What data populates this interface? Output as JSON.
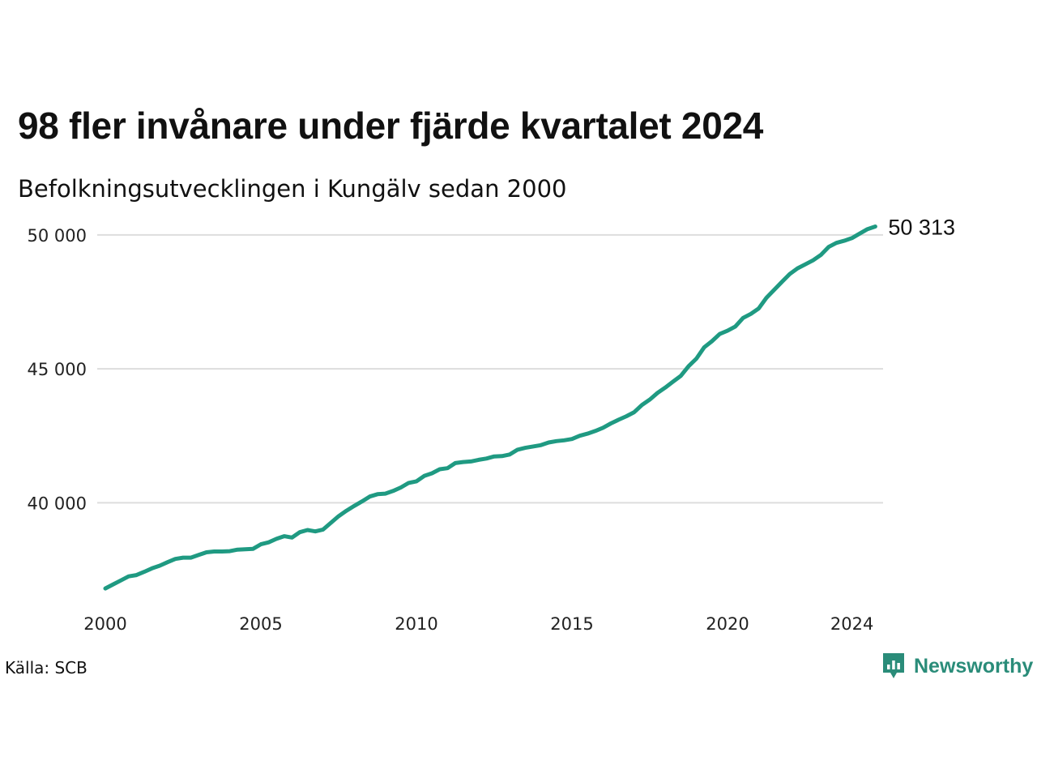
{
  "title": "98 fler invånare under fjärde kvartalet 2024",
  "subtitle": "Befolkningsutvecklingen i Kungälv sedan 2000",
  "source": "Källa: SCB",
  "brand": {
    "name": "Newsworthy",
    "color": "#2a8c79",
    "icon": "newsworthy-chart-icon"
  },
  "chart_data": {
    "type": "line",
    "title": "98 fler invånare under fjärde kvartalet 2024",
    "subtitle": "Befolkningsutvecklingen i Kungälv sedan 2000",
    "xlabel": "",
    "ylabel": "",
    "grid": true,
    "line_color": "#1f9a82",
    "grid_color": "#dddddd",
    "xlim": [
      2000,
      2025
    ],
    "ylim": [
      36500,
      50600
    ],
    "x_ticks": [
      {
        "value": 2000,
        "label": "2000"
      },
      {
        "value": 2005,
        "label": "2005"
      },
      {
        "value": 2010,
        "label": "2010"
      },
      {
        "value": 2015,
        "label": "2015"
      },
      {
        "value": 2020,
        "label": "2020"
      },
      {
        "value": 2024,
        "label": "2024"
      }
    ],
    "y_ticks": [
      {
        "value": 40000,
        "label": "40 000"
      },
      {
        "value": 45000,
        "label": "45 000"
      },
      {
        "value": 50000,
        "label": "50 000"
      }
    ],
    "end_label": "50 313",
    "x": [
      2000.0,
      2000.25,
      2000.5,
      2000.75,
      2001.0,
      2001.25,
      2001.5,
      2001.75,
      2002.0,
      2002.25,
      2002.5,
      2002.75,
      2003.0,
      2003.25,
      2003.5,
      2003.75,
      2004.0,
      2004.25,
      2004.5,
      2004.75,
      2005.0,
      2005.25,
      2005.5,
      2005.75,
      2006.0,
      2006.25,
      2006.5,
      2006.75,
      2007.0,
      2007.25,
      2007.5,
      2007.75,
      2008.0,
      2008.25,
      2008.5,
      2008.75,
      2009.0,
      2009.25,
      2009.5,
      2009.75,
      2010.0,
      2010.25,
      2010.5,
      2010.75,
      2011.0,
      2011.25,
      2011.5,
      2011.75,
      2012.0,
      2012.25,
      2012.5,
      2012.75,
      2013.0,
      2013.25,
      2013.5,
      2013.75,
      2014.0,
      2014.25,
      2014.5,
      2014.75,
      2015.0,
      2015.25,
      2015.5,
      2015.75,
      2016.0,
      2016.25,
      2016.5,
      2016.75,
      2017.0,
      2017.25,
      2017.5,
      2017.75,
      2018.0,
      2018.25,
      2018.5,
      2018.75,
      2019.0,
      2019.25,
      2019.5,
      2019.75,
      2020.0,
      2020.25,
      2020.5,
      2020.75,
      2021.0,
      2021.25,
      2021.5,
      2021.75,
      2022.0,
      2022.25,
      2022.5,
      2022.75,
      2023.0,
      2023.25,
      2023.5,
      2023.75,
      2024.0,
      2024.25,
      2024.5,
      2024.75
    ],
    "series": [
      {
        "values": [
          36800,
          36950,
          37100,
          37250,
          37300,
          37420,
          37550,
          37650,
          37780,
          37900,
          37950,
          37950,
          38050,
          38150,
          38180,
          38180,
          38190,
          38250,
          38260,
          38280,
          38450,
          38520,
          38650,
          38750,
          38700,
          38900,
          38980,
          38930,
          39000,
          39250,
          39500,
          39700,
          39880,
          40050,
          40230,
          40320,
          40340,
          40440,
          40570,
          40740,
          40800,
          41000,
          41100,
          41250,
          41290,
          41480,
          41520,
          41540,
          41600,
          41650,
          41730,
          41740,
          41800,
          41980,
          42050,
          42100,
          42150,
          42250,
          42300,
          42330,
          42380,
          42500,
          42580,
          42680,
          42800,
          42960,
          43100,
          43230,
          43380,
          43650,
          43850,
          44100,
          44300,
          44520,
          44740,
          45100,
          45380,
          45800,
          46030,
          46300,
          46420,
          46580,
          46900,
          47050,
          47250,
          47650,
          47950,
          48250,
          48540,
          48750,
          48900,
          49050,
          49250,
          49550,
          49700,
          49780,
          49880,
          50050,
          50215,
          50313
        ]
      }
    ]
  }
}
